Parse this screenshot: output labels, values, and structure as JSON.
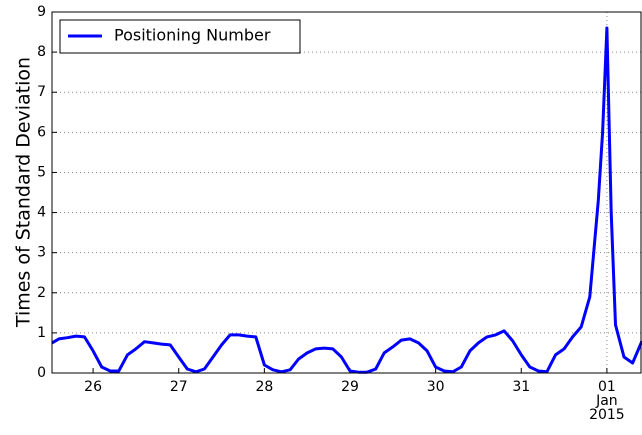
{
  "chart_data": {
    "type": "line",
    "ylabel": "Times of Standard Deviation",
    "x": [
      25.52,
      25.6,
      25.7,
      25.8,
      25.9,
      26.0,
      26.1,
      26.2,
      26.3,
      26.4,
      26.5,
      26.6,
      26.7,
      26.8,
      26.9,
      27.0,
      27.1,
      27.2,
      27.3,
      27.4,
      27.5,
      27.6,
      27.7,
      27.8,
      27.9,
      28.0,
      28.1,
      28.2,
      28.3,
      28.4,
      28.5,
      28.6,
      28.7,
      28.8,
      28.9,
      29.0,
      29.1,
      29.2,
      29.3,
      29.4,
      29.5,
      29.6,
      29.7,
      29.8,
      29.9,
      30.0,
      30.1,
      30.2,
      30.3,
      30.4,
      30.5,
      30.6,
      30.7,
      30.8,
      30.9,
      31.0,
      31.1,
      31.2,
      31.3,
      31.4,
      31.5,
      31.6,
      31.7,
      31.8,
      31.9,
      31.95,
      32.0,
      32.05,
      32.1,
      32.2,
      32.3,
      32.41
    ],
    "series": [
      {
        "name": "Positioning Number",
        "color": "#0000ff",
        "values": [
          0.75,
          0.85,
          0.88,
          0.92,
          0.9,
          0.55,
          0.15,
          0.05,
          0.05,
          0.45,
          0.6,
          0.78,
          0.75,
          0.72,
          0.7,
          0.4,
          0.1,
          0.03,
          0.1,
          0.4,
          0.7,
          0.95,
          0.95,
          0.92,
          0.9,
          0.2,
          0.08,
          0.03,
          0.08,
          0.35,
          0.5,
          0.6,
          0.62,
          0.6,
          0.4,
          0.05,
          0.02,
          0.02,
          0.1,
          0.5,
          0.65,
          0.82,
          0.85,
          0.75,
          0.55,
          0.15,
          0.05,
          0.03,
          0.15,
          0.55,
          0.75,
          0.9,
          0.95,
          1.05,
          0.8,
          0.45,
          0.15,
          0.05,
          0.03,
          0.45,
          0.6,
          0.9,
          1.15,
          1.9,
          4.3,
          6.0,
          8.6,
          4.0,
          1.2,
          0.4,
          0.25,
          0.8
        ]
      }
    ],
    "xlim": [
      25.52,
      32.41
    ],
    "xticks": [
      26,
      27,
      28,
      29,
      30,
      31,
      {
        "value": 32,
        "label": "01\nJan\n2015"
      }
    ],
    "ylim": [
      0,
      9
    ],
    "yticks": [
      0,
      1,
      2,
      3,
      4,
      5,
      6,
      7,
      8,
      9
    ],
    "grid": true,
    "legend": "upper left"
  }
}
